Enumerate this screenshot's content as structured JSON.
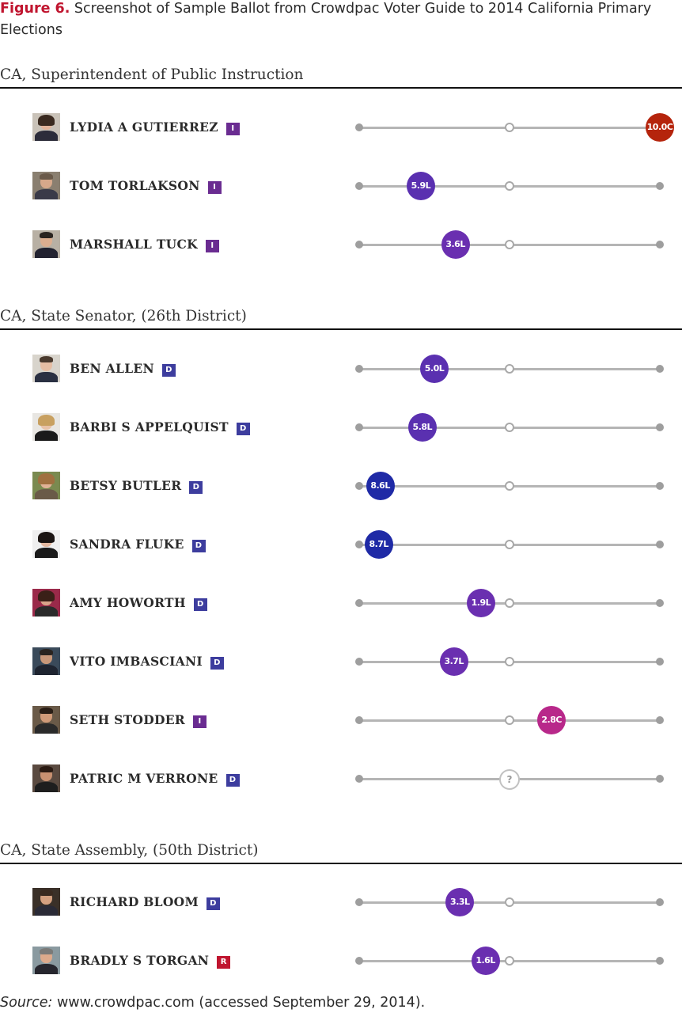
{
  "caption": {
    "label": "Figure 6.",
    "text": " Screenshot of Sample Ballot from Crowdpac Voter Guide to 2014 California Primary Elections"
  },
  "colors": {
    "caption_label": "#c0152f",
    "party_I": "#6a2c91",
    "party_D": "#3d3d9e",
    "party_R": "#c0152f",
    "score_conservative_strong": "#b5240c",
    "score_conservative": "#b8288a",
    "score_liberal_moderate": "#6a2fb0",
    "score_liberal": "#5a30b0",
    "score_liberal_strong": "#1f2aa6",
    "track": "#b5b5b5"
  },
  "races": [
    {
      "title": "CA, Superintendent of Public Instruction",
      "candidates": [
        {
          "name": "LYDIA A GUTIERREZ",
          "party": "I",
          "score": "10.0C",
          "avatar": "woman-portrait"
        },
        {
          "name": "TOM TORLAKSON",
          "party": "I",
          "score": "5.9L",
          "avatar": "man-portrait"
        },
        {
          "name": "MARSHALL TUCK",
          "party": "I",
          "score": "3.6L",
          "avatar": "man-portrait"
        }
      ]
    },
    {
      "title": "CA, State Senator, (26th District)",
      "candidates": [
        {
          "name": "BEN ALLEN",
          "party": "D",
          "score": "5.0L",
          "avatar": "man-portrait"
        },
        {
          "name": "BARBI S APPELQUIST",
          "party": "D",
          "score": "5.8L",
          "avatar": "woman-portrait"
        },
        {
          "name": "BETSY BUTLER",
          "party": "D",
          "score": "8.6L",
          "avatar": "woman-portrait"
        },
        {
          "name": "SANDRA FLUKE",
          "party": "D",
          "score": "8.7L",
          "avatar": "woman-portrait"
        },
        {
          "name": "AMY HOWORTH",
          "party": "D",
          "score": "1.9L",
          "avatar": "woman-portrait"
        },
        {
          "name": "VITO IMBASCIANI",
          "party": "D",
          "score": "3.7L",
          "avatar": "man-portrait"
        },
        {
          "name": "SETH STODDER",
          "party": "I",
          "score": "2.8C",
          "avatar": "man-portrait"
        },
        {
          "name": "PATRIC M VERRONE",
          "party": "D",
          "score": "?",
          "avatar": "man-portrait"
        }
      ]
    },
    {
      "title": "CA, State Assembly, (50th District)",
      "candidates": [
        {
          "name": "RICHARD BLOOM",
          "party": "D",
          "score": "3.3L",
          "avatar": "man-portrait"
        },
        {
          "name": "BRADLY S TORGAN",
          "party": "R",
          "score": "1.6L",
          "avatar": "man-portrait"
        }
      ]
    }
  ],
  "source": {
    "label": "Source:",
    "text": " www.crowdpac.com (accessed September 29, 2014)."
  }
}
